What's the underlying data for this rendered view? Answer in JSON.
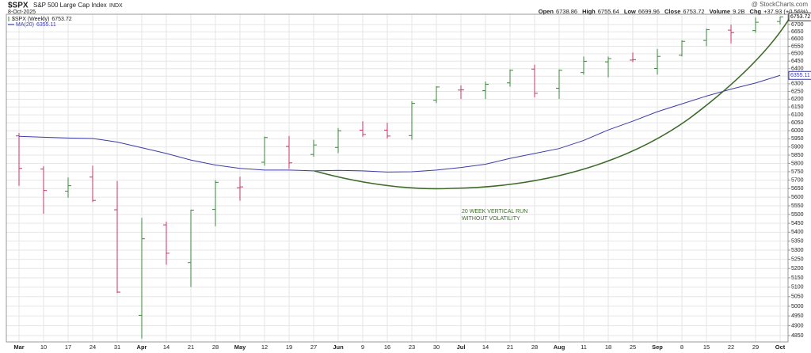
{
  "chart_data": {
    "type": "ohlc",
    "title": "$SPX",
    "subtitle": "S&P 500 Large Cap Index",
    "exchange": "INDX",
    "date": "8-Oct-2025",
    "source": "@ StockCharts.com",
    "quote": [
      {
        "label": "Open",
        "value": 6738.86
      },
      {
        "label": "High",
        "value": 6755.64
      },
      {
        "label": "Low",
        "value": 6699.96
      },
      {
        "label": "Close",
        "value": 6753.72
      },
      {
        "label": "Volume",
        "value": "9.2B"
      },
      {
        "label": "Chg",
        "value": "+37.93 (+0.56%)"
      }
    ],
    "categories": [
      "Mar",
      "10",
      "17",
      "24",
      "31",
      "Apr",
      "14",
      "21",
      "28",
      "May",
      "12",
      "19",
      "27",
      "Jun",
      "9",
      "16",
      "23",
      "30",
      "Jul",
      "14",
      "21",
      "28",
      "Aug",
      "11",
      "18",
      "25",
      "Sep",
      "8",
      "15",
      "22",
      "29",
      "Oct"
    ],
    "series": [
      {
        "name": "$SPX (Weekly)",
        "open": [
          5968,
          5766,
          5635,
          5718,
          5527,
          4953,
          5441,
          5232,
          5529,
          5655,
          5807,
          5903,
          5854,
          5897,
          6004,
          6004,
          5970,
          6193,
          6259,
          6255,
          6306,
          6397,
          6271,
          6374,
          6445,
          6457,
          6401,
          6490,
          6590,
          6661,
          6658,
          6721
        ],
        "high": [
          5986,
          5783,
          5715,
          5786,
          5695,
          5481,
          5459,
          5528,
          5700,
          5720,
          5964,
          5968,
          5944,
          6017,
          6059,
          6050,
          6187,
          6284,
          6290,
          6315,
          6395,
          6427,
          6395,
          6481,
          6481,
          6508,
          6532,
          6592,
          6672,
          6699,
          6750,
          6755.64
        ],
        "low": [
          5666,
          5504,
          5597,
          5572,
          5069,
          4835,
          5220,
          5101,
          5433,
          5579,
          5786,
          5768,
          5840,
          5862,
          5963,
          5952,
          5944,
          6175,
          6201,
          6201,
          6281,
          6212,
          6201,
          6360,
          6343,
          6444,
          6360,
          6481,
          6551,
          6570,
          6644,
          6699.96
        ],
        "close": [
          5770,
          5639,
          5667,
          5581,
          5074,
          5363,
          5283,
          5525,
          5687,
          5660,
          5958,
          5803,
          5912,
          6000,
          5977,
          5967,
          6173,
          6279,
          6260,
          6297,
          6389,
          6238,
          6389,
          6449,
          6467,
          6460,
          6482,
          6584,
          6664,
          6644,
          6716,
          6753.72
        ],
        "colors": [
          "#cc3366",
          "#cc3366",
          "#3a8a3a",
          "#cc3366",
          "#cc3366",
          "#3a8a3a",
          "#cc3366",
          "#3a8a3a",
          "#3a8a3a",
          "#cc3366",
          "#3a8a3a",
          "#cc3366",
          "#3a8a3a",
          "#3a8a3a",
          "#cc3366",
          "#cc3366",
          "#3a8a3a",
          "#3a8a3a",
          "#cc3366",
          "#3a8a3a",
          "#3a8a3a",
          "#cc3366",
          "#3a8a3a",
          "#3a8a3a",
          "#3a8a3a",
          "#cc3366",
          "#3a8a3a",
          "#3a8a3a",
          "#3a8a3a",
          "#cc3366",
          "#3a8a3a",
          "#3a8a3a"
        ]
      },
      {
        "name": "MA(20)",
        "color": "#3b3ba8",
        "values": [
          5965,
          5960,
          5955,
          5952,
          5930,
          5895,
          5860,
          5820,
          5790,
          5770,
          5760,
          5760,
          5755,
          5758,
          5755,
          5748,
          5750,
          5760,
          5775,
          5795,
          5830,
          5860,
          5890,
          5940,
          6005,
          6060,
          6120,
          6170,
          6220,
          6265,
          6305,
          6355.11
        ]
      }
    ],
    "ylim": [
      4818,
      6772
    ],
    "log": true,
    "yticks": [
      4850,
      4900,
      4950,
      5000,
      5050,
      5100,
      5150,
      5200,
      5250,
      5300,
      5350,
      5400,
      5450,
      5500,
      5550,
      5600,
      5650,
      5700,
      5750,
      5800,
      5850,
      5900,
      5950,
      6000,
      6050,
      6100,
      6150,
      6200,
      6250,
      6300,
      6350,
      6400,
      6450,
      6500,
      6550,
      6600,
      6650,
      6700
    ],
    "grid": true,
    "annotation": [
      "20 WEEK VERTICAL RUN",
      "WITHOUT VOLATILITY"
    ],
    "annotation_color": "#3d6b2a"
  }
}
